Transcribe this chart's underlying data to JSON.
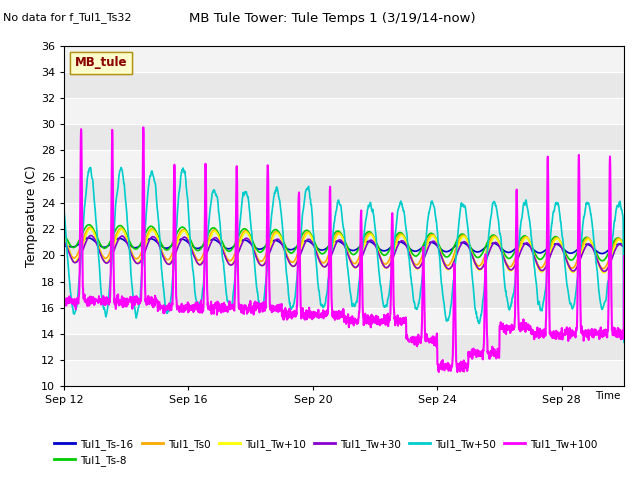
{
  "title": "MB Tule Tower: Tule Temps 1 (3/19/14-now)",
  "subtitle": "No data for f_Tul1_Ts32",
  "ylabel": "Temperature (C)",
  "xlabel": "Time",
  "legend_box_label": "MB_tule",
  "ylim": [
    10,
    36
  ],
  "yticks": [
    10,
    12,
    14,
    16,
    18,
    20,
    22,
    24,
    26,
    28,
    30,
    32,
    34,
    36
  ],
  "xtick_labels": [
    "Sep 12",
    "Sep 16",
    "Sep 20",
    "Sep 24",
    "Sep 28"
  ],
  "xtick_positions": [
    0,
    4,
    8,
    12,
    16
  ],
  "plot_bg_color": "#e8e8e8",
  "series": {
    "Tul1_Ts-16": {
      "color": "#0000cc",
      "lw": 1.2
    },
    "Tul1_Ts-8": {
      "color": "#00cc00",
      "lw": 1.2
    },
    "Tul1_Ts0": {
      "color": "#ffaa00",
      "lw": 1.2
    },
    "Tul1_Tw+10": {
      "color": "#ffff00",
      "lw": 1.2
    },
    "Tul1_Tw+30": {
      "color": "#8800cc",
      "lw": 1.2
    },
    "Tul1_Tw+50": {
      "color": "#00cccc",
      "lw": 1.2
    },
    "Tul1_Tw+100": {
      "color": "#ff00ff",
      "lw": 1.5
    }
  },
  "legend_order": [
    "Tul1_Ts-16",
    "Tul1_Ts-8",
    "Tul1_Ts0",
    "Tul1_Tw+10",
    "Tul1_Tw+30",
    "Tul1_Tw+50",
    "Tul1_Tw+100"
  ]
}
